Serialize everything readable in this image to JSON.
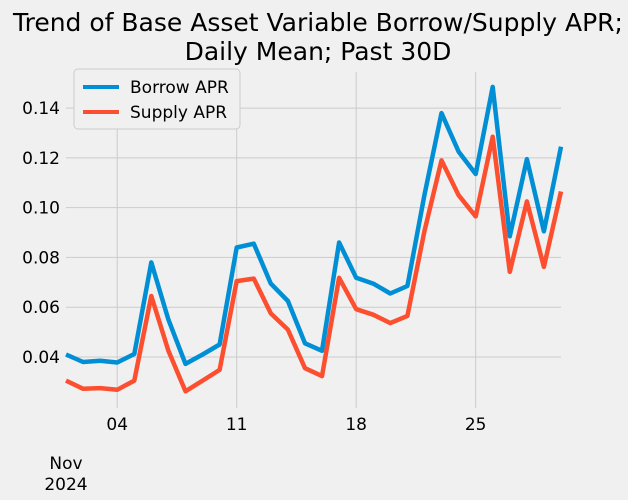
{
  "chart_data": {
    "type": "line",
    "title_line1": "Trend of Base Asset Variable Borrow/Supply APR;",
    "title_line2": "Daily Mean; Past 30D",
    "x": [
      "2024-11-01",
      "2024-11-02",
      "2024-11-03",
      "2024-11-04",
      "2024-11-05",
      "2024-11-06",
      "2024-11-07",
      "2024-11-08",
      "2024-11-09",
      "2024-11-10",
      "2024-11-11",
      "2024-11-12",
      "2024-11-13",
      "2024-11-14",
      "2024-11-15",
      "2024-11-16",
      "2024-11-17",
      "2024-11-18",
      "2024-11-19",
      "2024-11-20",
      "2024-11-21",
      "2024-11-22",
      "2024-11-23",
      "2024-11-24",
      "2024-11-25",
      "2024-11-26",
      "2024-11-27",
      "2024-11-28",
      "2024-11-29",
      "2024-11-30"
    ],
    "series": [
      {
        "name": "Borrow APR",
        "color": "#008fd5",
        "values": [
          0.041,
          0.038,
          0.0385,
          0.0378,
          0.0412,
          0.078,
          0.055,
          0.0372,
          0.041,
          0.045,
          0.084,
          0.0855,
          0.0695,
          0.0625,
          0.0455,
          0.0425,
          0.086,
          0.0718,
          0.0695,
          0.0655,
          0.0685,
          0.105,
          0.138,
          0.1225,
          0.1135,
          0.1485,
          0.0885,
          0.1195,
          0.0905,
          0.1245
        ]
      },
      {
        "name": "Supply APR",
        "color": "#fc4f30",
        "values": [
          0.0305,
          0.0272,
          0.0275,
          0.0268,
          0.0305,
          0.0645,
          0.0425,
          0.0262,
          0.0305,
          0.0348,
          0.0705,
          0.0715,
          0.0575,
          0.051,
          0.0355,
          0.0323,
          0.0718,
          0.0592,
          0.057,
          0.0536,
          0.0565,
          0.0905,
          0.119,
          0.105,
          0.0965,
          0.1285,
          0.0742,
          0.1025,
          0.0762,
          0.1065
        ]
      }
    ],
    "yticks": [
      0.04,
      0.06,
      0.08,
      0.1,
      0.12,
      0.14
    ],
    "ytick_labels": [
      "0.04",
      "0.06",
      "0.08",
      "0.10",
      "0.12",
      "0.14"
    ],
    "xticks": [
      "2024-11-04",
      "2024-11-11",
      "2024-11-18",
      "2024-11-25"
    ],
    "xtick_labels": [
      "04",
      "11",
      "18",
      "25"
    ],
    "x_month_label": "Nov",
    "x_year_label": "2024",
    "ylim": [
      0.0195,
      0.1545
    ],
    "grid": true,
    "legend_position": "top-left"
  }
}
